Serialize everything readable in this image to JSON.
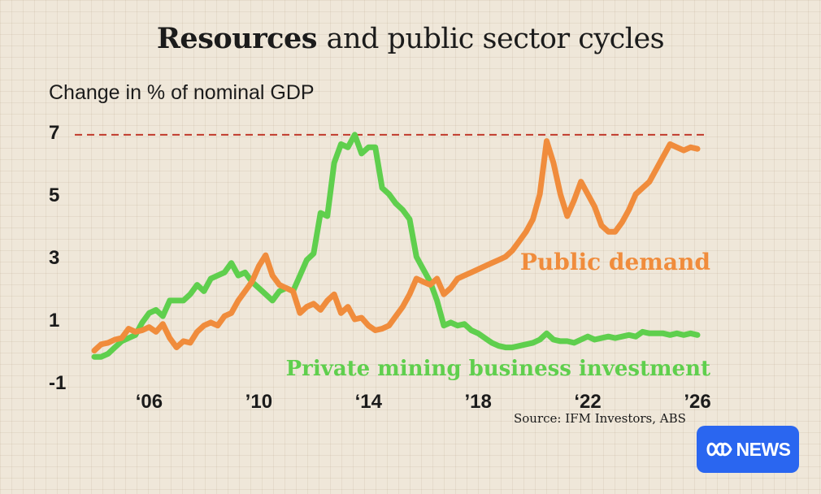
{
  "title": {
    "bold": "Resources",
    "rest": "and public sector cycles"
  },
  "source": "Source: IFM Investors, ABS",
  "logo": {
    "icon": "abc-lissajous-icon",
    "text": "NEWS"
  },
  "colors": {
    "public": "#f08c3c",
    "mining": "#5fcf4d",
    "reference": "#c0392b",
    "logo": "#2a66f0"
  },
  "chart_data": {
    "type": "line",
    "ylabel": "Change in % of nominal GDP",
    "xlabel": "",
    "ylim": [
      -1,
      7
    ],
    "xlim": [
      2004,
      2026
    ],
    "yticks": [
      "7",
      "5",
      "3",
      "1",
      "-1"
    ],
    "xticks": [
      {
        "x": 2006,
        "label": "‘06"
      },
      {
        "x": 2010,
        "label": "’10"
      },
      {
        "x": 2014,
        "label": "‘14"
      },
      {
        "x": 2018,
        "label": "’18"
      },
      {
        "x": 2022,
        "label": "‘22"
      },
      {
        "x": 2026,
        "label": "’26"
      }
    ],
    "reference_line": {
      "y": 6.9,
      "style": "dashed"
    },
    "series": [
      {
        "name": "Public demand",
        "label_position": "inline right",
        "x": [
          2004.0,
          2004.25,
          2004.5,
          2004.75,
          2005.0,
          2005.25,
          2005.5,
          2005.75,
          2006.0,
          2006.25,
          2006.5,
          2006.75,
          2007.0,
          2007.25,
          2007.5,
          2007.75,
          2008.0,
          2008.25,
          2008.5,
          2008.75,
          2009.0,
          2009.25,
          2009.5,
          2009.75,
          2010.0,
          2010.25,
          2010.5,
          2010.75,
          2011.0,
          2011.25,
          2011.5,
          2011.75,
          2012.0,
          2012.25,
          2012.5,
          2012.75,
          2013.0,
          2013.25,
          2013.5,
          2013.75,
          2014.0,
          2014.25,
          2014.5,
          2014.75,
          2015.0,
          2015.25,
          2015.5,
          2015.75,
          2016.0,
          2016.25,
          2016.5,
          2016.75,
          2017.0,
          2017.25,
          2017.5,
          2017.75,
          2018.0,
          2018.25,
          2018.5,
          2018.75,
          2019.0,
          2019.25,
          2019.5,
          2019.75,
          2020.0,
          2020.25,
          2020.5,
          2020.75,
          2021.0,
          2021.25,
          2021.5,
          2021.75,
          2022.0,
          2022.25,
          2022.5,
          2022.75,
          2023.0,
          2023.25,
          2023.5,
          2023.75,
          2024.0,
          2024.25,
          2024.5,
          2024.75,
          2025.0,
          2025.25,
          2025.5,
          2025.75,
          2026.0
        ],
        "values": [
          0.0,
          0.2,
          0.25,
          0.35,
          0.4,
          0.7,
          0.6,
          0.65,
          0.75,
          0.6,
          0.85,
          0.4,
          0.1,
          0.3,
          0.25,
          0.6,
          0.8,
          0.9,
          0.8,
          1.1,
          1.2,
          1.6,
          1.9,
          2.2,
          2.7,
          3.05,
          2.4,
          2.1,
          2.0,
          1.9,
          1.2,
          1.4,
          1.5,
          1.3,
          1.6,
          1.8,
          1.2,
          1.4,
          1.0,
          1.05,
          0.8,
          0.65,
          0.7,
          0.8,
          1.1,
          1.4,
          1.8,
          2.3,
          2.2,
          2.1,
          2.3,
          1.8,
          2.0,
          2.3,
          2.4,
          2.5,
          2.6,
          2.7,
          2.8,
          2.9,
          3.0,
          3.2,
          3.5,
          3.8,
          4.2,
          5.0,
          6.7,
          6.0,
          5.0,
          4.3,
          4.8,
          5.4,
          5.0,
          4.6,
          4.0,
          3.8,
          3.8,
          4.1,
          4.5,
          5.0,
          5.2,
          5.4,
          5.8,
          6.2,
          6.6,
          6.5,
          6.4,
          6.5,
          6.45
        ]
      },
      {
        "name": "Private mining business investment",
        "label_position": "inline bottom",
        "x": [
          2004.0,
          2004.25,
          2004.5,
          2004.75,
          2005.0,
          2005.25,
          2005.5,
          2005.75,
          2006.0,
          2006.25,
          2006.5,
          2006.75,
          2007.0,
          2007.25,
          2007.5,
          2007.75,
          2008.0,
          2008.25,
          2008.5,
          2008.75,
          2009.0,
          2009.25,
          2009.5,
          2009.75,
          2010.0,
          2010.25,
          2010.5,
          2010.75,
          2011.0,
          2011.25,
          2011.5,
          2011.75,
          2012.0,
          2012.25,
          2012.5,
          2012.75,
          2013.0,
          2013.25,
          2013.5,
          2013.75,
          2014.0,
          2014.25,
          2014.5,
          2014.75,
          2015.0,
          2015.25,
          2015.5,
          2015.75,
          2016.0,
          2016.25,
          2016.5,
          2016.75,
          2017.0,
          2017.25,
          2017.5,
          2017.75,
          2018.0,
          2018.25,
          2018.5,
          2018.75,
          2019.0,
          2019.25,
          2019.5,
          2019.75,
          2020.0,
          2020.25,
          2020.5,
          2020.75,
          2021.0,
          2021.25,
          2021.5,
          2021.75,
          2022.0,
          2022.25,
          2022.5,
          2022.75,
          2023.0,
          2023.25,
          2023.5,
          2023.75,
          2024.0,
          2024.25,
          2024.5,
          2024.75,
          2025.0,
          2025.25,
          2025.5,
          2025.75,
          2026.0
        ],
        "values": [
          -0.2,
          -0.2,
          -0.1,
          0.1,
          0.3,
          0.4,
          0.5,
          0.9,
          1.2,
          1.3,
          1.1,
          1.6,
          1.6,
          1.6,
          1.8,
          2.1,
          1.9,
          2.3,
          2.4,
          2.5,
          2.8,
          2.4,
          2.5,
          2.2,
          2.0,
          1.8,
          1.6,
          1.9,
          2.0,
          1.9,
          2.4,
          2.9,
          3.1,
          4.4,
          4.3,
          6.0,
          6.6,
          6.5,
          6.9,
          6.3,
          6.5,
          6.5,
          5.2,
          5.0,
          4.7,
          4.5,
          4.2,
          3.0,
          2.6,
          2.2,
          1.6,
          0.8,
          0.9,
          0.8,
          0.85,
          0.65,
          0.55,
          0.4,
          0.25,
          0.15,
          0.1,
          0.1,
          0.15,
          0.2,
          0.25,
          0.35,
          0.55,
          0.35,
          0.3,
          0.3,
          0.25,
          0.35,
          0.45,
          0.35,
          0.4,
          0.45,
          0.4,
          0.45,
          0.5,
          0.45,
          0.6,
          0.55,
          0.55,
          0.55,
          0.5,
          0.55,
          0.5,
          0.55,
          0.5
        ]
      }
    ]
  }
}
